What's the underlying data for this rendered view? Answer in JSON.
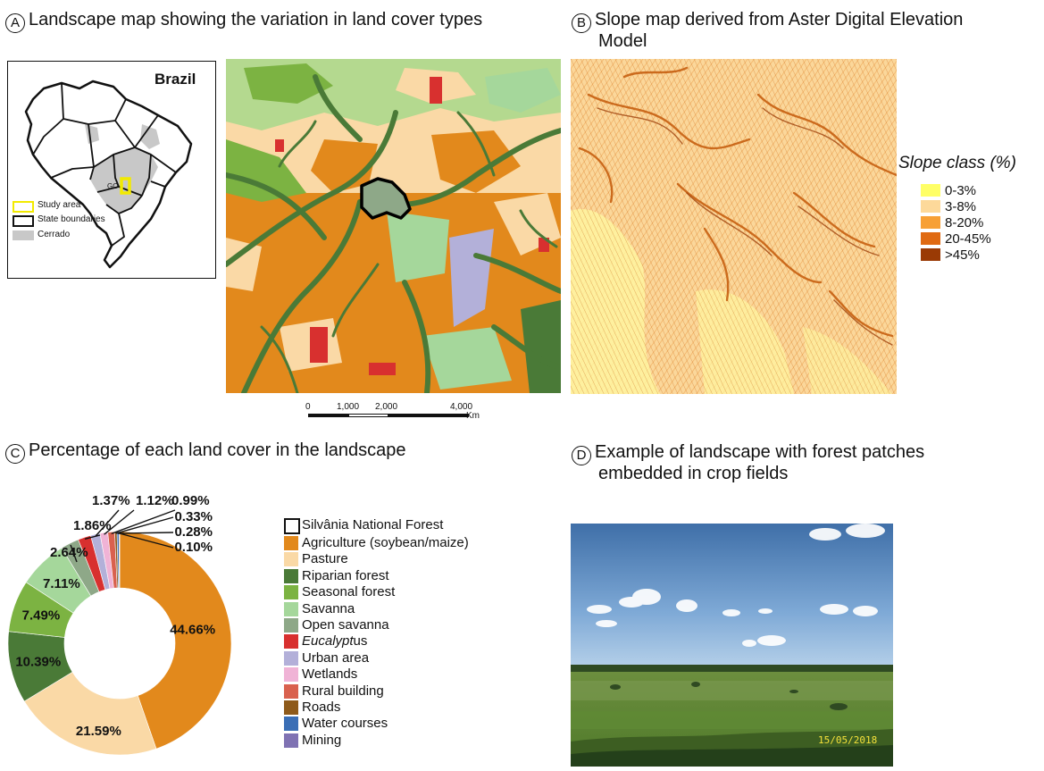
{
  "panels": {
    "a": {
      "letter": "A",
      "title": "Landscape map showing the variation in land cover types"
    },
    "b": {
      "letter": "B",
      "title_line1": "Slope map derived from Aster Digital Elevation",
      "title_line2": "Model"
    },
    "c": {
      "letter": "C",
      "title": "Percentage of each land cover in the landscape"
    },
    "d": {
      "letter": "D",
      "title_line1": "Example of landscape with forest patches",
      "title_line2": "embedded in crop fields"
    }
  },
  "inset_map": {
    "country_label": "Brazil",
    "state_label": "GO",
    "legend": [
      {
        "label": "Study area",
        "color": "#ffff00",
        "style": "outline"
      },
      {
        "label": "State boundaries",
        "color": "#000000",
        "style": "outline"
      },
      {
        "label": "Cerrado",
        "color": "#c8c8c8",
        "style": "fill"
      }
    ]
  },
  "scale_bar": {
    "ticks": [
      "0",
      "1,000",
      "2,000",
      "4,000"
    ],
    "unit": "Km"
  },
  "slope_legend": {
    "title": "Slope class (%)",
    "classes": [
      {
        "label": "0-3%",
        "color": "#ffff66"
      },
      {
        "label": "3-8%",
        "color": "#fdd99a"
      },
      {
        "label": "8-20%",
        "color": "#f7a035"
      },
      {
        "label": "20-45%",
        "color": "#e06a12"
      },
      {
        "label": ">45%",
        "color": "#9a3a05"
      }
    ]
  },
  "land_cover_legend": {
    "reserve_label": "Silvânia National Forest",
    "items": [
      {
        "label": "Agriculture (soybean/maize)",
        "color": "#e2891c"
      },
      {
        "label": "Pasture",
        "color": "#fad9a6"
      },
      {
        "label": "Riparian forest",
        "color": "#4a7a37"
      },
      {
        "label": "Seasonal forest",
        "color": "#7cb342"
      },
      {
        "label": "Savanna",
        "color": "#a5d79b"
      },
      {
        "label": "Open savanna",
        "color": "#8ea888"
      },
      {
        "label_italic": "Eucalypt",
        "label_rest": "us",
        "color": "#d8302f"
      },
      {
        "label": "Urban area",
        "color": "#b3b0d9"
      },
      {
        "label": "Wetlands",
        "color": "#f0b3d6"
      },
      {
        "label": "Rural building",
        "color": "#d9614e"
      },
      {
        "label": "Roads",
        "color": "#8e5a1a"
      },
      {
        "label": "Water courses",
        "color": "#3a6eb5"
      },
      {
        "label": "Mining",
        "color": "#7f72b3"
      }
    ]
  },
  "chart_data": {
    "type": "pie",
    "title": "Percentage of each land cover in the landscape",
    "categories": [
      "Agriculture (soybean/maize)",
      "Pasture",
      "Riparian forest",
      "Seasonal forest",
      "Savanna",
      "Open savanna",
      "Eucalyptus",
      "Urban area",
      "Wetlands",
      "Rural building",
      "Roads",
      "Water courses",
      "Mining"
    ],
    "values": [
      44.66,
      21.59,
      10.39,
      7.49,
      7.11,
      2.64,
      1.86,
      1.37,
      1.12,
      0.99,
      0.33,
      0.28,
      0.1
    ],
    "labels": [
      "44.66%",
      "21.59%",
      "10.39%",
      "7.49%",
      "7.11%",
      "2.64%",
      "1.86%",
      "1.37%",
      "1.12%",
      "0.99%",
      "0.33%",
      "0.28%",
      "0.10%"
    ],
    "colors": [
      "#e2891c",
      "#fad9a6",
      "#4a7a37",
      "#7cb342",
      "#a5d79b",
      "#8ea888",
      "#d8302f",
      "#b3b0d9",
      "#f0b3d6",
      "#d9614e",
      "#8e5a1a",
      "#3a6eb5",
      "#7f72b3"
    ],
    "donut": true
  },
  "photo": {
    "date_stamp": "15/05/2018"
  }
}
